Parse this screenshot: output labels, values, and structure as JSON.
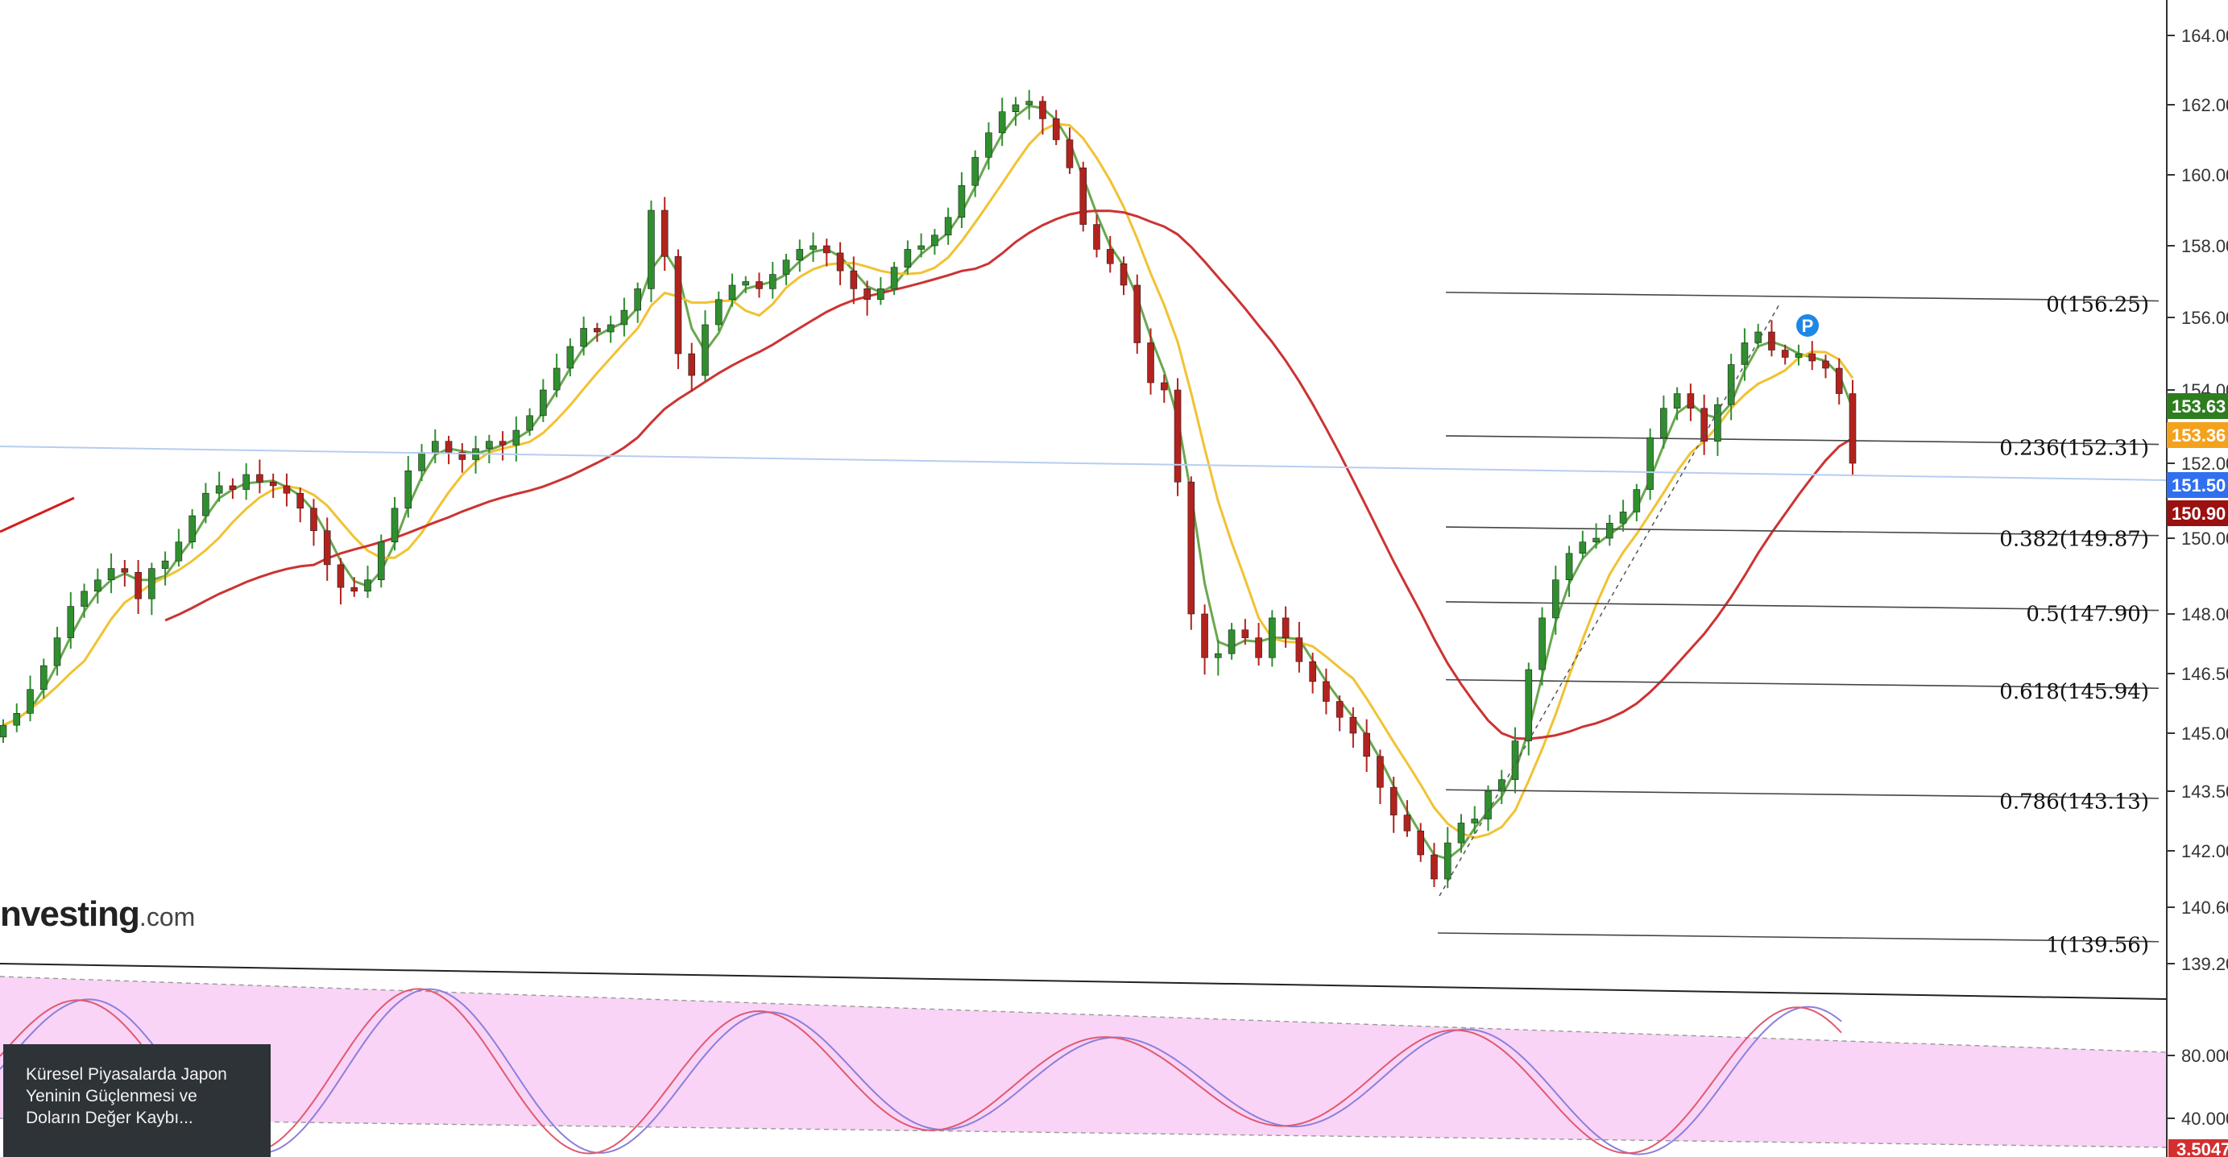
{
  "chart_data": {
    "type": "candlestick",
    "price_axis": {
      "ticks": [
        "164.00",
        "162.00",
        "160.00",
        "158.00",
        "156.00",
        "154.00",
        "152.00",
        "150.00",
        "148.00",
        "146.50",
        "145.00",
        "143.50",
        "142.00",
        "140.60",
        "139.20"
      ],
      "ylim": [
        138.6,
        164.6
      ]
    },
    "price_tags": [
      {
        "text": "153.63",
        "value": 153.63,
        "color": "#2e7d1f"
      },
      {
        "text": "153.36",
        "value": 153.36,
        "color": "#f4a11c"
      },
      {
        "text": "151.50",
        "value": 151.5,
        "color": "#2f6ff0"
      },
      {
        "text": "150.90",
        "value": 150.9,
        "color": "#9b1010"
      }
    ],
    "fibonacci_levels": [
      {
        "label": "0(156.25)",
        "level": 0,
        "price": 156.25
      },
      {
        "label": "0.236(152.31)",
        "level": 0.236,
        "price": 152.31
      },
      {
        "label": "0.382(149.87)",
        "level": 0.382,
        "price": 149.87
      },
      {
        "label": "0.5(147.90)",
        "level": 0.5,
        "price": 147.9
      },
      {
        "label": "0.618(145.94)",
        "level": 0.618,
        "price": 145.94
      },
      {
        "label": "0.786(143.13)",
        "level": 0.786,
        "price": 143.13
      },
      {
        "label": "1(139.56)",
        "level": 1,
        "price": 139.56
      }
    ],
    "close_path": [
      145.2,
      145.5,
      146.1,
      146.7,
      147.4,
      148.2,
      148.6,
      148.9,
      149.2,
      149.1,
      148.4,
      149.2,
      149.4,
      149.9,
      150.6,
      151.2,
      151.4,
      151.3,
      151.7,
      151.5,
      151.4,
      151.2,
      150.8,
      150.2,
      149.3,
      148.7,
      148.6,
      148.9,
      149.9,
      150.8,
      151.8,
      152.3,
      152.6,
      152.3,
      152.1,
      152.4,
      152.6,
      152.5,
      152.9,
      153.3,
      154.0,
      154.6,
      155.2,
      155.7,
      155.6,
      155.8,
      156.2,
      156.8,
      159.0,
      157.7,
      155.0,
      154.4,
      155.8,
      156.5,
      156.9,
      157.0,
      156.8,
      157.2,
      157.6,
      157.9,
      158.0,
      157.8,
      157.3,
      156.8,
      156.5,
      156.8,
      157.4,
      157.9,
      158.0,
      158.3,
      158.8,
      159.7,
      160.5,
      161.2,
      161.8,
      162.0,
      162.1,
      161.6,
      161.0,
      160.2,
      158.6,
      157.9,
      157.5,
      156.9,
      155.3,
      154.2,
      154.0,
      151.5,
      148.0,
      146.9,
      147.0,
      147.6,
      147.4,
      146.9,
      147.9,
      147.4,
      146.8,
      146.3,
      145.8,
      145.4,
      145.0,
      144.4,
      143.6,
      142.9,
      142.5,
      141.9,
      141.3,
      142.2,
      142.7,
      142.8,
      143.5,
      143.8,
      144.8,
      146.6,
      147.9,
      148.9,
      149.6,
      149.9,
      150.0,
      150.4,
      150.7,
      151.3,
      152.7,
      153.5,
      153.9,
      153.5,
      152.6,
      153.6,
      154.7,
      155.3,
      155.6,
      155.1,
      154.9,
      155.0,
      154.8,
      154.6,
      153.9,
      152.0
    ],
    "series": [
      {
        "type": "ma",
        "color": "#6aa84f"
      },
      {
        "type": "ma",
        "color": "#f1c232"
      },
      {
        "type": "ma",
        "color": "#cc3333"
      }
    ],
    "marker": {
      "text": "P",
      "color": "#1e88e5"
    },
    "stochastic": {
      "ticks": [
        "80.0000",
        "40.0000"
      ],
      "last_value_text": "3.5047",
      "band_color": "#f9d4f6",
      "k_color": "#8c7fdc",
      "d_color": "#e05a70"
    }
  },
  "branding": {
    "main": "nvesting",
    "domain": ".com"
  },
  "news_card": {
    "lines": [
      "Küresel Piyasalarda Japon",
      "Yeninin Güçlenmesi ve",
      "Doların Değer Kaybı..."
    ]
  }
}
